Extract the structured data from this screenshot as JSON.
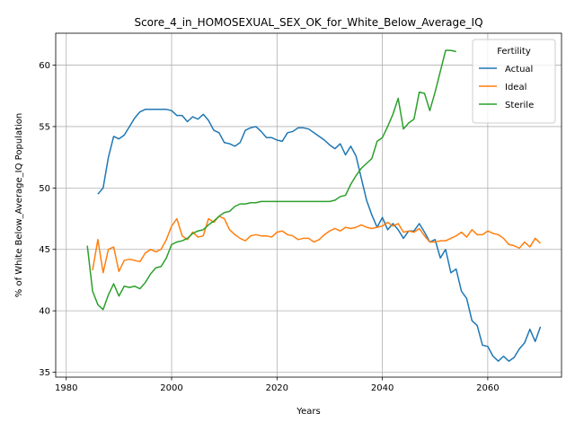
{
  "chart_data": {
    "type": "line",
    "title": "Score_4_in_HOMOSEXUAL_SEX_OK_for_White_Below_Average_IQ",
    "xlabel": "Years",
    "ylabel": "% of White Below_Average_IQ Population",
    "xlim": [
      1978,
      2074
    ],
    "ylim": [
      34.6,
      62.6
    ],
    "xticks": [
      1980,
      2000,
      2020,
      2040,
      2060
    ],
    "yticks": [
      35,
      40,
      45,
      50,
      55,
      60
    ],
    "grid": true,
    "legend": {
      "title": "Fertility",
      "position": "top-right"
    },
    "series": [
      {
        "name": "Actual",
        "color": "#1f77b4",
        "x": [
          1986,
          1987,
          1988,
          1989,
          1990,
          1991,
          1992,
          1993,
          1994,
          1995,
          1996,
          1997,
          1998,
          1999,
          2000,
          2001,
          2002,
          2003,
          2004,
          2005,
          2006,
          2007,
          2008,
          2009,
          2010,
          2011,
          2012,
          2013,
          2014,
          2015,
          2016,
          2017,
          2018,
          2019,
          2020,
          2021,
          2022,
          2023,
          2024,
          2025,
          2026,
          2027,
          2028,
          2029,
          2030,
          2031,
          2032,
          2033,
          2034,
          2035,
          2036,
          2037,
          2038,
          2039,
          2040,
          2041,
          2042,
          2043,
          2044,
          2045,
          2046,
          2047,
          2048,
          2049,
          2050,
          2051,
          2052,
          2053,
          2054,
          2055,
          2056,
          2057,
          2058,
          2059,
          2060,
          2061,
          2062,
          2063,
          2064,
          2065,
          2066,
          2067,
          2068,
          2069,
          2070
        ],
        "y": [
          49.5,
          50.0,
          52.5,
          54.2,
          54.0,
          54.3,
          55.0,
          55.7,
          56.2,
          56.4,
          56.4,
          56.4,
          56.4,
          56.4,
          56.3,
          55.9,
          55.9,
          55.4,
          55.8,
          55.6,
          56.0,
          55.5,
          54.7,
          54.5,
          53.7,
          53.6,
          53.4,
          53.7,
          54.7,
          54.9,
          55.0,
          54.6,
          54.1,
          54.1,
          53.9,
          53.8,
          54.5,
          54.6,
          54.9,
          54.9,
          54.8,
          54.5,
          54.2,
          53.9,
          53.5,
          53.2,
          53.6,
          52.7,
          53.4,
          52.6,
          50.8,
          49.0,
          47.8,
          46.8,
          47.6,
          46.6,
          47.1,
          46.6,
          45.9,
          46.5,
          46.5,
          47.1,
          46.4,
          45.6,
          45.8,
          44.3,
          45.0,
          43.1,
          43.4,
          41.6,
          41.0,
          39.2,
          38.8,
          37.2,
          37.1,
          36.3,
          35.9,
          36.3,
          35.9,
          36.2,
          36.9,
          37.4,
          38.5,
          37.5,
          38.7
        ]
      },
      {
        "name": "Ideal",
        "color": "#ff7f0e",
        "x": [
          1985,
          1986,
          1987,
          1988,
          1989,
          1990,
          1991,
          1992,
          1993,
          1994,
          1995,
          1996,
          1997,
          1998,
          1999,
          2000,
          2001,
          2002,
          2003,
          2004,
          2005,
          2006,
          2007,
          2008,
          2009,
          2010,
          2011,
          2012,
          2013,
          2014,
          2015,
          2016,
          2017,
          2018,
          2019,
          2020,
          2021,
          2022,
          2023,
          2024,
          2025,
          2026,
          2027,
          2028,
          2029,
          2030,
          2031,
          2032,
          2033,
          2034,
          2035,
          2036,
          2037,
          2038,
          2039,
          2040,
          2041,
          2042,
          2043,
          2044,
          2045,
          2046,
          2047,
          2048,
          2049,
          2050,
          2051,
          2052,
          2053,
          2054,
          2055,
          2056,
          2057,
          2058,
          2059,
          2060,
          2061,
          2062,
          2063,
          2064,
          2065,
          2066,
          2067,
          2068,
          2069,
          2070
        ],
        "y": [
          43.3,
          45.8,
          43.1,
          45.0,
          45.2,
          43.2,
          44.1,
          44.2,
          44.1,
          44.0,
          44.7,
          45.0,
          44.8,
          45.0,
          45.8,
          46.9,
          47.5,
          46.1,
          45.8,
          46.4,
          46.0,
          46.1,
          47.5,
          47.2,
          47.7,
          47.5,
          46.6,
          46.2,
          45.9,
          45.7,
          46.1,
          46.2,
          46.1,
          46.1,
          46.0,
          46.4,
          46.5,
          46.2,
          46.1,
          45.8,
          45.9,
          45.9,
          45.6,
          45.8,
          46.2,
          46.5,
          46.7,
          46.5,
          46.8,
          46.7,
          46.8,
          47.0,
          46.8,
          46.7,
          46.8,
          46.9,
          47.2,
          46.9,
          47.1,
          46.4,
          46.5,
          46.4,
          46.7,
          46.1,
          45.6,
          45.6,
          45.7,
          45.7,
          45.9,
          46.1,
          46.4,
          46.0,
          46.6,
          46.2,
          46.2,
          46.5,
          46.3,
          46.2,
          45.9,
          45.4,
          45.3,
          45.1,
          45.6,
          45.2,
          45.9,
          45.5
        ]
      },
      {
        "name": "Sterile",
        "color": "#2ca02c",
        "x": [
          1984,
          1985,
          1986,
          1987,
          1988,
          1989,
          1990,
          1991,
          1992,
          1993,
          1994,
          1995,
          1996,
          1997,
          1998,
          1999,
          2000,
          2001,
          2002,
          2003,
          2004,
          2005,
          2006,
          2007,
          2008,
          2009,
          2010,
          2011,
          2012,
          2013,
          2014,
          2015,
          2016,
          2017,
          2018,
          2019,
          2020,
          2021,
          2022,
          2023,
          2024,
          2025,
          2026,
          2027,
          2028,
          2029,
          2030,
          2031,
          2032,
          2033,
          2034,
          2035,
          2036,
          2037,
          2038,
          2039,
          2040,
          2041,
          2042,
          2043,
          2044,
          2045,
          2046,
          2047,
          2048,
          2049,
          2050,
          2051,
          2052,
          2053,
          2054
        ],
        "y": [
          45.3,
          41.6,
          40.5,
          40.1,
          41.3,
          42.2,
          41.2,
          42.0,
          41.9,
          42.0,
          41.8,
          42.3,
          43.0,
          43.5,
          43.6,
          44.3,
          45.4,
          45.6,
          45.7,
          45.9,
          46.3,
          46.5,
          46.6,
          47.0,
          47.3,
          47.7,
          48.0,
          48.1,
          48.5,
          48.7,
          48.7,
          48.8,
          48.8,
          48.9,
          48.9,
          48.9,
          48.9,
          48.9,
          48.9,
          48.9,
          48.9,
          48.9,
          48.9,
          48.9,
          48.9,
          48.9,
          48.9,
          49.0,
          49.3,
          49.4,
          50.3,
          51.0,
          51.6,
          52.0,
          52.4,
          53.8,
          54.1,
          55.0,
          56.0,
          57.3,
          54.8,
          55.3,
          55.6,
          57.8,
          57.7,
          56.3,
          57.8,
          59.5,
          61.2,
          61.2,
          61.1
        ]
      }
    ]
  }
}
